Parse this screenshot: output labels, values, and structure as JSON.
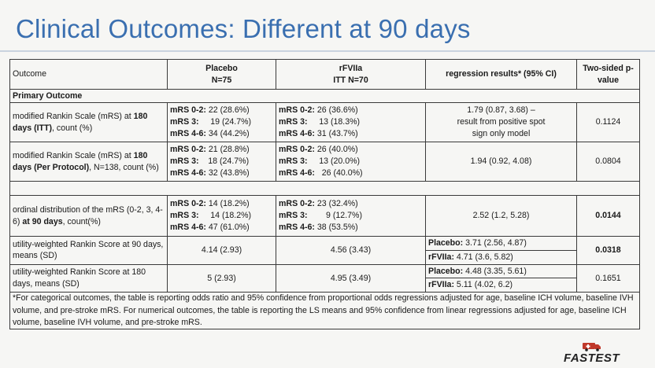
{
  "title": "Clinical Outcomes: Different at 90 days",
  "header": {
    "outcome": "Outcome",
    "placebo": "Placebo",
    "placebo_n": "N=75",
    "rfviia": "rFVIIa",
    "rfviia_n": "ITT N=70",
    "regression": "regression results* (95% CI)",
    "pvalue_1": "Two-sided p-",
    "pvalue_2": "value"
  },
  "primary_outcome": "Primary Outcome",
  "rows": [
    {
      "outcome_pre": "modified Rankin Scale (mRS) at ",
      "outcome_bold": "180 days (ITT)",
      "outcome_post": ", count (%)",
      "placebo": [
        {
          "label": "mRS 0-2:",
          "value": "22 (28.6%)"
        },
        {
          "label": "mRS 3:",
          "value": "19 (24.7%)"
        },
        {
          "label": "mRS 4-6:",
          "value": "34 (44.2%)"
        }
      ],
      "rfviia": [
        {
          "label": "mRS 0-2:",
          "value": "26 (36.6%)"
        },
        {
          "label": "mRS 3:",
          "value": "13 (18.3%)"
        },
        {
          "label": "mRS 4-6:",
          "value": "31 (43.7%)"
        }
      ],
      "regression": [
        "1.79 (0.87, 3.68) –",
        "result from  positive spot",
        "sign only model"
      ],
      "pvalue": "0.1124"
    },
    {
      "outcome_pre": "modified Rankin Scale (mRS) at ",
      "outcome_bold": "180 days (Per Protocol)",
      "outcome_post": ", N=138, count (%)",
      "placebo": [
        {
          "label": "mRS 0-2:",
          "value": "21 (28.8%)"
        },
        {
          "label": "mRS 3:",
          "value": "18 (24.7%)"
        },
        {
          "label": "mRS 4-6:",
          "value": "32 (43.8%)"
        }
      ],
      "rfviia": [
        {
          "label": "mRS 0-2:",
          "value": "26 (40.0%)"
        },
        {
          "label": "mRS 3:",
          "value": "13 (20.0%)"
        },
        {
          "label": "mRS 4-6:",
          "value": "26 (40.0%)"
        }
      ],
      "regression": "1.94 (0.92, 4.08)",
      "pvalue": "0.0804"
    },
    {
      "outcome_pre": "ordinal distribution of the mRS (0-2, 3, 4-6) ",
      "outcome_bold": "at 90 days",
      "outcome_post": ", count(%)",
      "placebo": [
        {
          "label": "mRS 0-2:",
          "value": "14 (18.2%)"
        },
        {
          "label": "mRS 3:",
          "value": "14 (18.2%)"
        },
        {
          "label": "mRS 4-6:",
          "value": "47 (61.0%)"
        }
      ],
      "rfviia": [
        {
          "label": "mRS 0-2:",
          "value": "23 (32.4%)"
        },
        {
          "label": "mRS 3:",
          "value": "9 (12.7%)"
        },
        {
          "label": "mRS 4-6:",
          "value": "38 (53.5%)"
        }
      ],
      "regression": "2.52 (1.2, 5.28)",
      "pvalue": "0.0144"
    },
    {
      "outcome": "utility-weighted Rankin Score at 90 days, means (SD)",
      "placebo": "4.14 (2.93)",
      "rfviia": "4.56 (3.43)",
      "reg_placebo_label": "Placebo:",
      "reg_placebo_value": "3.71 (2.56, 4.87)",
      "reg_rfviia_label": "rFVIIa:",
      "reg_rfviia_value": "4.71 (3.6, 5.82)",
      "pvalue": "0.0318"
    },
    {
      "outcome": "utility-weighted Rankin Score at 180 days, means (SD)",
      "placebo": "5 (2.93)",
      "rfviia": "4.95 (3.49)",
      "reg_placebo_label": "Placebo:",
      "reg_placebo_value": "4.48 (3.35, 5.61)",
      "reg_rfviia_label": "rFVIIa:",
      "reg_rfviia_value": "5.11 (4.02, 6.2)",
      "pvalue": "0.1651"
    }
  ],
  "footnote": "*For categorical outcomes, the table is reporting odds ratio and 95% confidence from proportional odds regressions adjusted for age, baseline ICH volume, baseline IVH volume, and pre-stroke mRS. For numerical outcomes, the table is reporting the LS means and 95% confidence from linear regressions adjusted for age, baseline ICH volume, baseline IVH volume, and pre-stroke mRS.",
  "logo_text": "FASTEST",
  "colors": {
    "title": "#3a6fb0",
    "logo_icon": "#c0392b"
  }
}
